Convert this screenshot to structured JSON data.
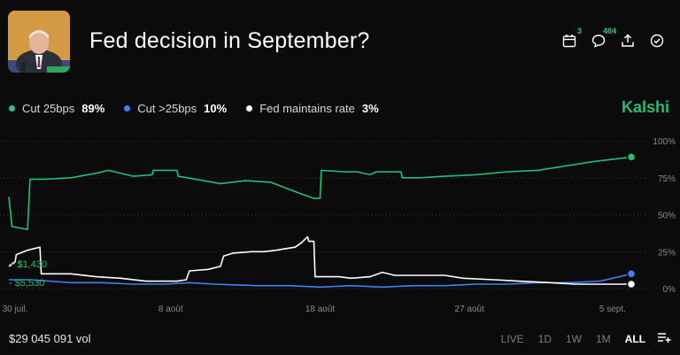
{
  "header": {
    "title": "Fed decision in September?",
    "calendar_badge": "3",
    "comments_badge": "484"
  },
  "legend": [
    {
      "label": "Cut 25bps",
      "value": "89%",
      "color": "#2ec27e"
    },
    {
      "label": "Cut >25bps",
      "value": "10%",
      "color": "#3b82f6"
    },
    {
      "label": "Fed maintains rate",
      "value": "3%",
      "color": "#ffffff"
    }
  ],
  "brand": "Kalshi",
  "annotations": {
    "gain": "+ $1,430",
    "loss": "- $5,530"
  },
  "footer": {
    "volume": "$29 045 091 vol",
    "ranges": [
      "LIVE",
      "1D",
      "1W",
      "1M",
      "ALL"
    ],
    "active_range": "ALL"
  },
  "colors": {
    "green": "#1fbf75",
    "blue": "#3b82f6",
    "white": "#ffffff",
    "grid": "#3a3a3a"
  },
  "icons": [
    "calendar-icon",
    "comment-icon",
    "share-icon",
    "check-circle-icon",
    "list-add-icon"
  ],
  "chart_data": {
    "type": "line",
    "x_ticks": [
      "30 juil.",
      "8 août",
      "18 août",
      "27 août",
      "5 sept."
    ],
    "y_ticks": [
      "100%",
      "75%",
      "50%",
      "25%",
      "0%"
    ],
    "ylim": [
      0,
      100
    ],
    "series": [
      {
        "name": "Cut 25bps",
        "color": "#1fbf75",
        "values": [
          [
            0,
            62
          ],
          [
            0.5,
            42
          ],
          [
            3,
            40
          ],
          [
            3.4,
            74
          ],
          [
            6,
            74
          ],
          [
            10,
            75
          ],
          [
            14,
            78
          ],
          [
            16,
            80
          ],
          [
            20,
            76
          ],
          [
            23,
            77
          ],
          [
            23.2,
            80
          ],
          [
            27,
            80
          ],
          [
            27.2,
            76
          ],
          [
            30,
            74
          ],
          [
            34,
            71
          ],
          [
            38,
            73
          ],
          [
            42,
            72
          ],
          [
            47,
            64
          ],
          [
            49,
            61
          ],
          [
            50,
            61
          ],
          [
            50.2,
            80
          ],
          [
            54,
            79
          ],
          [
            56,
            79
          ],
          [
            58,
            77
          ],
          [
            59,
            79
          ],
          [
            63,
            79
          ],
          [
            63.2,
            75
          ],
          [
            66,
            75
          ],
          [
            70,
            76
          ],
          [
            75,
            77
          ],
          [
            80,
            79
          ],
          [
            85,
            80
          ],
          [
            88,
            82
          ],
          [
            94,
            86
          ],
          [
            100,
            89
          ]
        ]
      },
      {
        "name": "Cut >25bps",
        "color": "#3b82f6",
        "values": [
          [
            0,
            6
          ],
          [
            3.5,
            6
          ],
          [
            10,
            4
          ],
          [
            15,
            4
          ],
          [
            20,
            3
          ],
          [
            25,
            3
          ],
          [
            29,
            4
          ],
          [
            33,
            3
          ],
          [
            40,
            2
          ],
          [
            45,
            2
          ],
          [
            50,
            1
          ],
          [
            55,
            2
          ],
          [
            60,
            1
          ],
          [
            65,
            2
          ],
          [
            70,
            2
          ],
          [
            75,
            3
          ],
          [
            80,
            3
          ],
          [
            85,
            4
          ],
          [
            90,
            4
          ],
          [
            95,
            5
          ],
          [
            100,
            10
          ]
        ]
      },
      {
        "name": "Fed maintains rate",
        "color": "#ffffff",
        "values": [
          [
            0,
            15
          ],
          [
            1,
            18
          ],
          [
            1.2,
            23
          ],
          [
            3,
            26
          ],
          [
            5,
            28
          ],
          [
            5.2,
            10
          ],
          [
            10,
            10
          ],
          [
            14,
            8
          ],
          [
            18,
            7
          ],
          [
            22,
            5
          ],
          [
            25,
            5
          ],
          [
            27,
            5
          ],
          [
            28.5,
            6
          ],
          [
            29,
            12
          ],
          [
            32,
            13
          ],
          [
            34,
            15
          ],
          [
            34.5,
            22
          ],
          [
            36,
            24
          ],
          [
            39,
            25
          ],
          [
            41,
            25
          ],
          [
            43,
            26
          ],
          [
            46,
            28
          ],
          [
            47,
            31
          ],
          [
            48,
            35
          ],
          [
            48.2,
            32
          ],
          [
            49,
            32
          ],
          [
            49.2,
            8
          ],
          [
            53,
            8
          ],
          [
            55,
            7
          ],
          [
            58,
            8
          ],
          [
            60,
            11
          ],
          [
            62,
            9
          ],
          [
            66,
            9
          ],
          [
            70,
            9
          ],
          [
            73,
            7
          ],
          [
            78,
            6
          ],
          [
            82,
            5
          ],
          [
            87,
            4
          ],
          [
            91,
            3
          ],
          [
            94,
            3
          ],
          [
            97,
            3
          ],
          [
            100,
            3
          ]
        ]
      }
    ]
  }
}
